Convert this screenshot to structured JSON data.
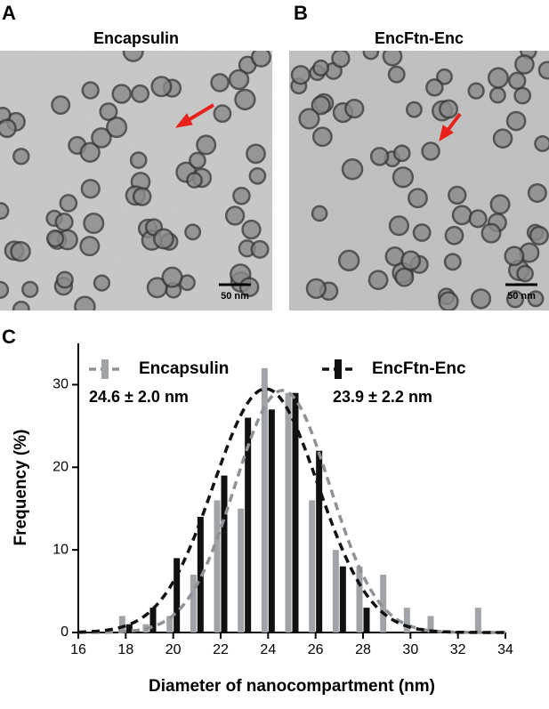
{
  "panels": [
    {
      "letter": "A",
      "title": "Encapsulin",
      "scale_bar": "50 nm"
    },
    {
      "letter": "B",
      "title": "EncFtn-Enc",
      "scale_bar": "50 nm"
    }
  ],
  "chart_data": {
    "type": "bar",
    "panel_label": "C",
    "x_label": "Diameter of nanocompartment (nm)",
    "y_label": "Frequency (%)",
    "x": [
      17,
      18,
      19,
      20,
      21,
      22,
      23,
      24,
      25,
      26,
      27,
      28,
      29,
      30,
      31,
      32,
      33
    ],
    "series": [
      {
        "name": "Encapsulin",
        "color": "#a0a4a8",
        "annotation": "24.6 ± 2.0 nm",
        "values": [
          0,
          2,
          1,
          2,
          7,
          16,
          15,
          32,
          29,
          16,
          10,
          8,
          7,
          3,
          2,
          0,
          3
        ],
        "fit_mean": 24.6,
        "fit_sd": 2.0,
        "fit_peak": 29.3
      },
      {
        "name": "EncFtn-Enc",
        "color": "#111111",
        "annotation": "23.9 ± 2.2 nm",
        "values": [
          0,
          1,
          3,
          9,
          14,
          19,
          26,
          27,
          29,
          22,
          8,
          3,
          0,
          0,
          0,
          0,
          0
        ],
        "fit_mean": 23.9,
        "fit_sd": 2.2,
        "fit_peak": 29.5
      }
    ],
    "xlim": [
      16,
      34
    ],
    "xticks": [
      16,
      18,
      20,
      22,
      24,
      26,
      28,
      30,
      32,
      34
    ],
    "ylim": [
      0,
      35
    ],
    "yticks": [
      0,
      10,
      20,
      30
    ]
  }
}
